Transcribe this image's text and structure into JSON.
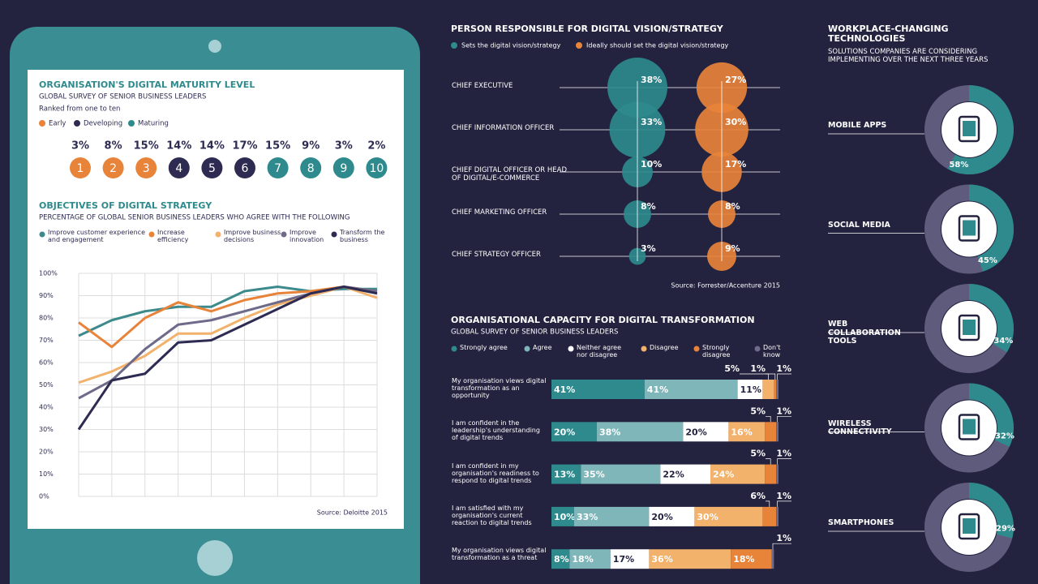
{
  "chart_data": [
    {
      "type": "rank",
      "title": "ORGANISATION'S DIGITAL MATURITY LEVEL",
      "subtitle": "GLOBAL SURVEY OF SENIOR BUSINESS LEADERS",
      "note": "Ranked from one to ten",
      "groups": [
        {
          "name": "Early",
          "color": "#e8833a"
        },
        {
          "name": "Developing",
          "color": "#2d2b52"
        },
        {
          "name": "Maturing",
          "color": "#2e8a8c"
        }
      ],
      "categories": [
        "1",
        "2",
        "3",
        "4",
        "5",
        "6",
        "7",
        "8",
        "9",
        "10"
      ],
      "category_group": [
        0,
        0,
        0,
        1,
        1,
        1,
        2,
        2,
        2,
        2
      ],
      "values": [
        3,
        8,
        15,
        14,
        14,
        17,
        15,
        9,
        3,
        2
      ],
      "value_labels": [
        "3%",
        "8%",
        "15%",
        "14%",
        "14%",
        "17%",
        "15%",
        "9%",
        "3%",
        "2%"
      ]
    },
    {
      "type": "line",
      "title": "OBJECTIVES OF DIGITAL STRATEGY",
      "subtitle": "PERCENTAGE OF GLOBAL SENIOR BUSINESS LEADERS WHO AGREE WITH THE FOLLOWING",
      "categories": [
        null,
        null,
        null,
        null,
        null,
        null,
        null,
        null,
        null,
        null
      ],
      "ylim": [
        0,
        100
      ],
      "yticks": [
        {
          "value": 0,
          "label": "0%"
        },
        {
          "value": 10,
          "label": "10%"
        },
        {
          "value": 20,
          "label": "20%"
        },
        {
          "value": 30,
          "label": "30%"
        },
        {
          "value": 40,
          "label": "40%"
        },
        {
          "value": 50,
          "label": "50%"
        },
        {
          "value": 60,
          "label": "60%"
        },
        {
          "value": 70,
          "label": "70%"
        },
        {
          "value": 80,
          "label": "80%"
        },
        {
          "value": 90,
          "label": "90%"
        },
        {
          "value": 100,
          "label": "100%"
        }
      ],
      "grid": true,
      "series": [
        {
          "name": "Improve customer experience and engagement",
          "color": "#3d8a8c",
          "values": [
            72,
            79,
            83,
            85,
            85,
            92,
            94,
            92,
            93,
            93
          ]
        },
        {
          "name": "Increase efficiency",
          "color": "#e8833a",
          "values": [
            78,
            67,
            80,
            87,
            83,
            88,
            91,
            92,
            94,
            92
          ]
        },
        {
          "name": "Improve business decisions",
          "color": "#f2b26b",
          "values": [
            51,
            56,
            63,
            73,
            73,
            80,
            86,
            90,
            94,
            89
          ]
        },
        {
          "name": "Improve innovation",
          "color": "#6e6a8a",
          "values": [
            44,
            52,
            66,
            77,
            79,
            83,
            87,
            91,
            94,
            92
          ]
        },
        {
          "name": "Transform the business",
          "color": "#2d2b52",
          "values": [
            30,
            52,
            55,
            69,
            70,
            77,
            84,
            91,
            94,
            91
          ]
        }
      ],
      "source": "Source: Deloitte 2015"
    },
    {
      "type": "bubble",
      "title": "PERSON RESPONSIBLE FOR DIGITAL VISION/STRATEGY",
      "categories": [
        "CHIEF EXECUTIVE",
        "CHIEF INFORMATION OFFICER",
        "CHIEF DIGITAL OFFICER OR HEAD OF DIGITAL/E-COMMERCE",
        "CHIEF MARKETING OFFICER",
        "CHIEF STRATEGY OFFICER"
      ],
      "series": [
        {
          "name": "Sets the digital vision/strategy",
          "color": "#2e8a8c",
          "values": [
            38,
            33,
            10,
            8,
            3
          ],
          "value_labels": [
            "38%",
            "33%",
            "10%",
            "8%",
            "3%"
          ]
        },
        {
          "name": "Ideally should set the digital vision/strategy",
          "color": "#e8833a",
          "values": [
            27,
            30,
            17,
            8,
            9
          ],
          "value_labels": [
            "27%",
            "30%",
            "17%",
            "8%",
            "9%"
          ]
        }
      ],
      "source": "Source: Forrester/Accenture 2015"
    },
    {
      "type": "stacked_bar",
      "title": "ORGANISATIONAL CAPACITY FOR DIGITAL TRANSFORMATION",
      "subtitle": "GLOBAL SURVEY OF SENIOR BUSINESS LEADERS",
      "categories": [
        "My organisation views digital transformation as an opportunity",
        "I am confident in the leadership's understanding of digital trends",
        "I am confident in my organisation's readiness to respond to digital trends",
        "I am satisfied with my organisation's current reaction to digital trends",
        "My organisation views digital transformation as a threat"
      ],
      "series": [
        {
          "name": "Strongly agree",
          "color": "#2e8a8c",
          "values": [
            41,
            20,
            13,
            10,
            8
          ],
          "value_labels": [
            "41%",
            "20%",
            "13%",
            "10%",
            "8%"
          ]
        },
        {
          "name": "Agree",
          "color": "#7fb6ba",
          "values": [
            41,
            38,
            35,
            33,
            18
          ],
          "value_labels": [
            "41%",
            "38%",
            "35%",
            "33%",
            "18%"
          ]
        },
        {
          "name": "Neither agree nor disagree",
          "color": "#ffffff",
          "values": [
            11,
            20,
            22,
            20,
            17
          ],
          "value_labels": [
            "11%",
            "20%",
            "22%",
            "20%",
            "17%"
          ]
        },
        {
          "name": "Disagree",
          "color": "#f2b26b",
          "values": [
            5,
            16,
            24,
            30,
            36
          ],
          "value_labels": [
            "5%",
            "16%",
            "24%",
            "30%",
            "36%"
          ]
        },
        {
          "name": "Strongly disagree",
          "color": "#e8833a",
          "values": [
            1,
            5,
            5,
            6,
            18
          ],
          "value_labels": [
            "1%",
            "5%",
            "5%",
            "6%",
            "18%"
          ]
        },
        {
          "name": "Don't know",
          "color": "#6e6a8a",
          "values": [
            1,
            1,
            1,
            1,
            1
          ],
          "value_labels": [
            "1%",
            "1%",
            "1%",
            "1%",
            "1%"
          ]
        }
      ],
      "xlim": [
        0,
        100
      ]
    },
    {
      "type": "donut",
      "title": "WORKPLACE-CHANGING TECHNOLOGIES",
      "subtitle": "SOLUTIONS COMPANIES ARE CONSIDERING IMPLEMENTING OVER THE NEXT THREE YEARS",
      "categories": [
        "MOBILE APPS",
        "SOCIAL MEDIA",
        "WEB COLLABORATION TOOLS",
        "WIRELESS CONNECTIVITY",
        "SMARTPHONES"
      ],
      "values": [
        58,
        45,
        34,
        32,
        29
      ],
      "value_labels": [
        "58%",
        "45%",
        "34%",
        "32%",
        "29%"
      ],
      "color": "#2e8a8c",
      "rest_color": "#5f5b7d"
    }
  ]
}
